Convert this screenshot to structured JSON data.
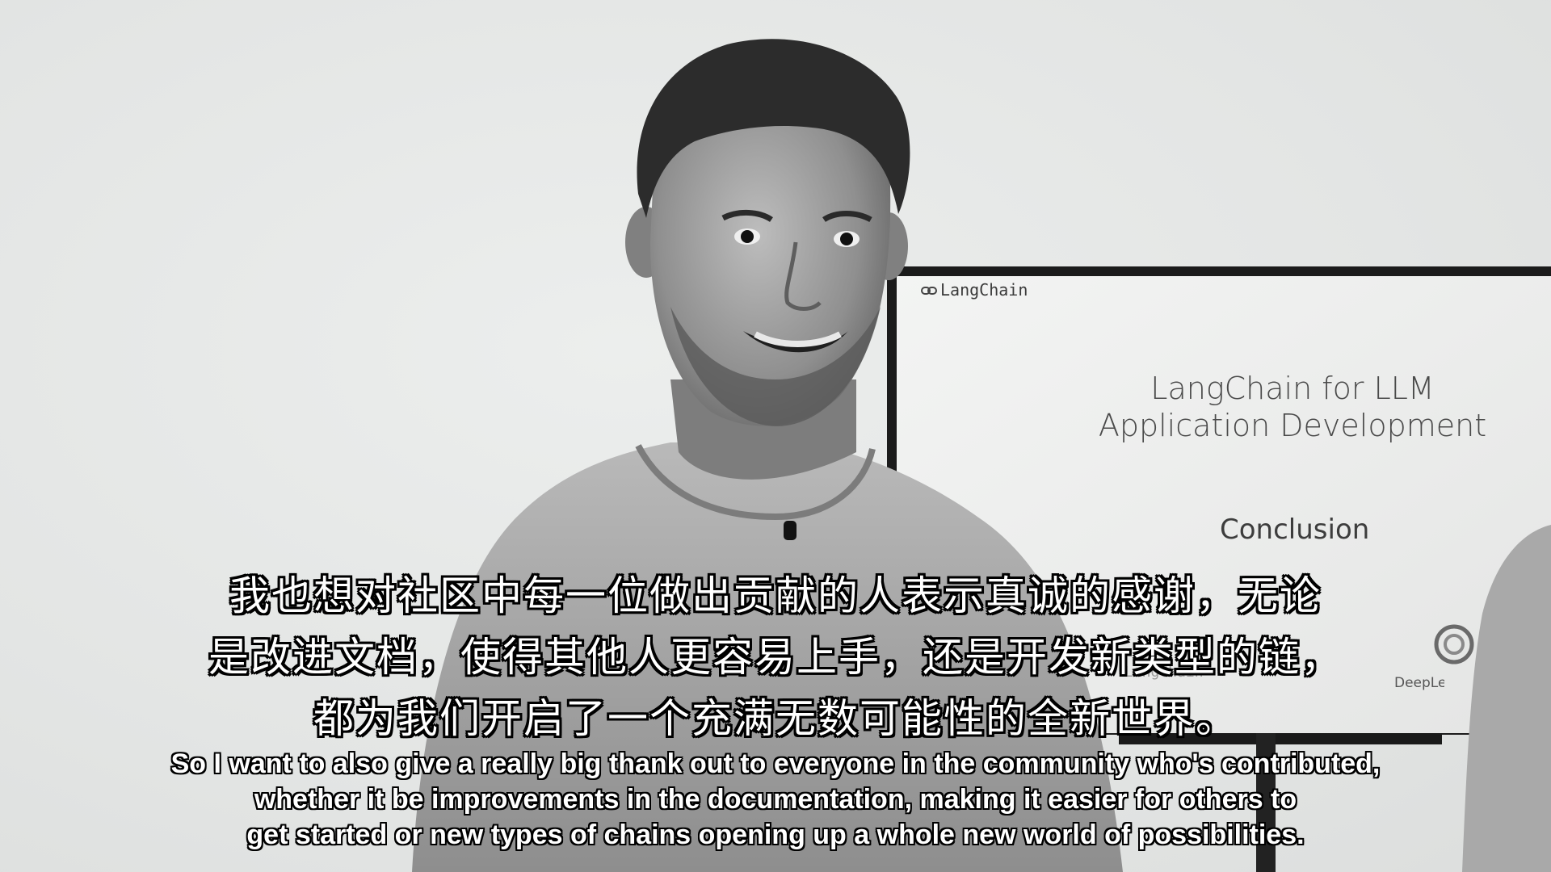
{
  "screen": {
    "brand": "LangChain",
    "title_line1": "LangChain for LLM",
    "title_line2": "Application Development",
    "section": "Conclusion",
    "footer_brand": "LangChain",
    "footer_logo": "DeepLearning"
  },
  "subtitles": {
    "zh_lines": [
      "我也想对社区中每一位做出贡献的人表示真诚的感谢，无论",
      "是改进文档，使得其他人更容易上手，还是开发新类型的链，",
      "都为我们开启了一个充满无数可能性的全新世界。"
    ],
    "en_lines": [
      "So I want to also give a really big thank out to everyone in the community who's contributed,",
      "whether it be improvements in the documentation, making it easier for others to",
      "get started or new types of chains opening up a whole new world of possibilities."
    ]
  }
}
